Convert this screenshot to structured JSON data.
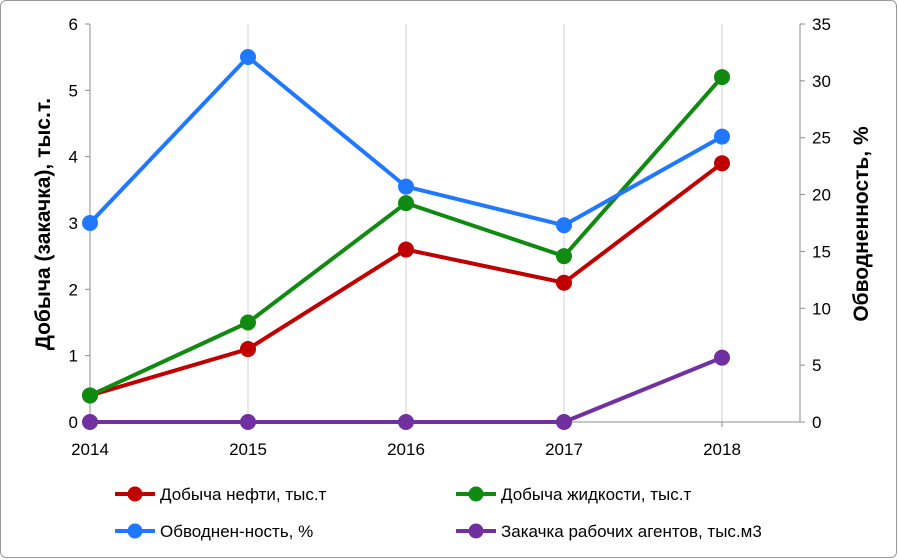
{
  "chart_data": {
    "type": "line",
    "x": [
      2014,
      2015,
      2016,
      2017,
      2018
    ],
    "x_tick_labels": [
      "2014",
      "2015",
      "2016",
      "2017",
      "2018"
    ],
    "ylabel_left": "Добыча (закачка), тыс.т.",
    "ylabel_right": "Обводненность, %",
    "ylim_left": [
      0,
      6
    ],
    "ylim_right": [
      0,
      35
    ],
    "y_ticks_left": [
      "0",
      "1",
      "2",
      "3",
      "4",
      "5",
      "6"
    ],
    "y_ticks_right": [
      "0",
      "5",
      "10",
      "15",
      "20",
      "25",
      "30",
      "35"
    ],
    "grid": "vertical",
    "legend_position": "bottom",
    "series": [
      {
        "name": "Добыча нефти, тыс.т",
        "axis": "left",
        "color": "#c00000",
        "values": [
          0.4,
          1.1,
          2.6,
          2.1,
          3.9
        ]
      },
      {
        "name": "Добыча жидкости, тыс.т",
        "axis": "left",
        "color": "#108a10",
        "values": [
          0.4,
          1.5,
          3.3,
          2.5,
          5.2
        ]
      },
      {
        "name": "Обводнен-ность, %",
        "axis": "right",
        "color": "#1f78ff",
        "values": [
          17.5,
          32.1,
          20.7,
          17.3,
          25.1
        ]
      },
      {
        "name": "Закачка рабочих агентов, тыс.м3",
        "axis": "left",
        "color": "#7030a0",
        "values": [
          0,
          0,
          0,
          0,
          0.97
        ]
      }
    ]
  }
}
